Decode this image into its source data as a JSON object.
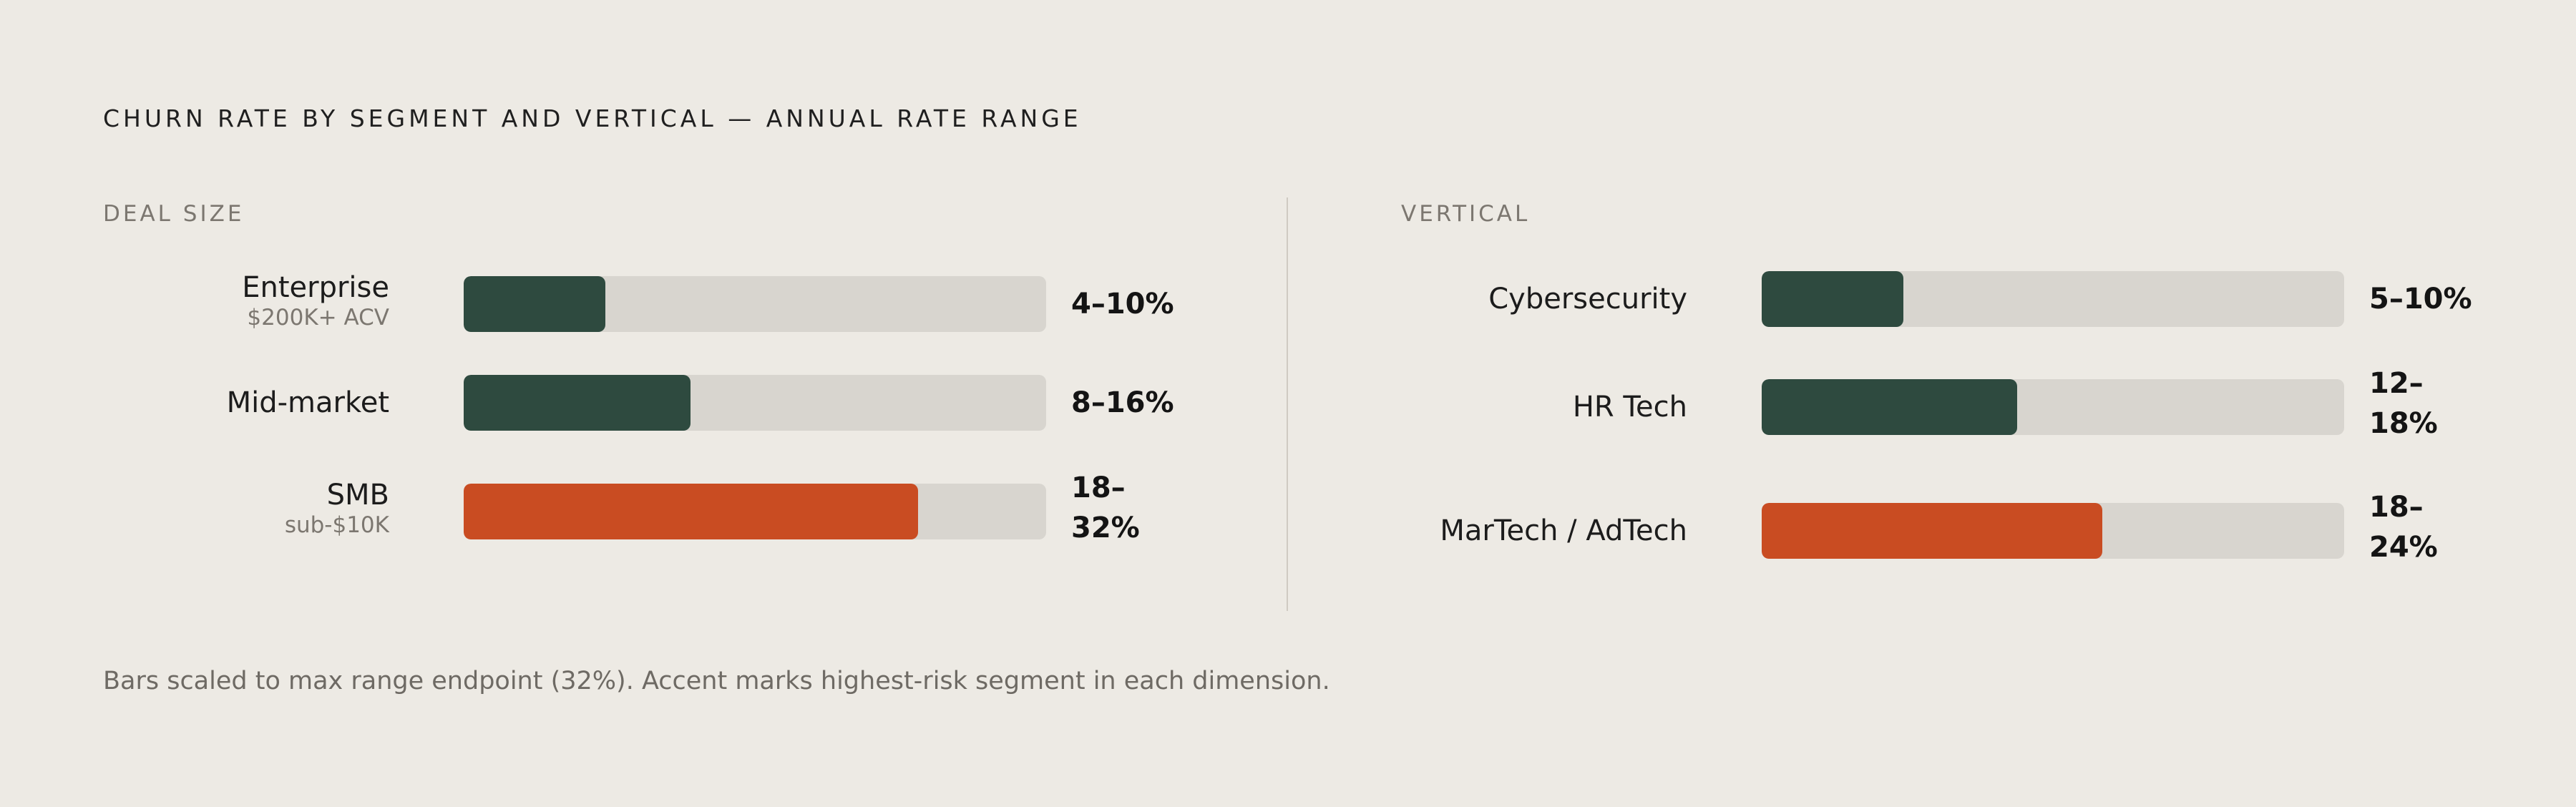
{
  "title": "CHURN RATE BY SEGMENT AND VERTICAL — ANNUAL RATE RANGE",
  "footnote": "Bars scaled to max range endpoint (32%). Accent marks highest-risk segment in each dimension.",
  "colors": {
    "background": "#edeae4",
    "track": "#d8d5cf",
    "standard": "#2e4a3f",
    "accent": "#c94c22"
  },
  "chart_data": [
    {
      "type": "bar",
      "dimension": "DEAL SIZE",
      "scale_max": 32,
      "unit": "%",
      "categories": [
        {
          "name": "Enterprise",
          "sub": "$200K+ ACV",
          "low": 4,
          "high": 10,
          "range_label": "4–10%",
          "accent": false
        },
        {
          "name": "Mid-market",
          "sub": "",
          "low": 8,
          "high": 16,
          "range_label": "8–16%",
          "accent": false
        },
        {
          "name": "SMB",
          "sub": "sub-$10K",
          "low": 18,
          "high": 32,
          "range_label": "18–32%",
          "accent": true
        }
      ]
    },
    {
      "type": "bar",
      "dimension": "VERTICAL",
      "scale_max": 32,
      "unit": "%",
      "categories": [
        {
          "name": "Cybersecurity",
          "sub": "",
          "low": 5,
          "high": 10,
          "range_label": "5–10%",
          "accent": false
        },
        {
          "name": "HR Tech",
          "sub": "",
          "low": 12,
          "high": 18,
          "range_label": "12–18%",
          "accent": false
        },
        {
          "name": "MarTech / AdTech",
          "sub": "",
          "low": 18,
          "high": 24,
          "range_label": "18–24%",
          "accent": true
        }
      ]
    }
  ]
}
